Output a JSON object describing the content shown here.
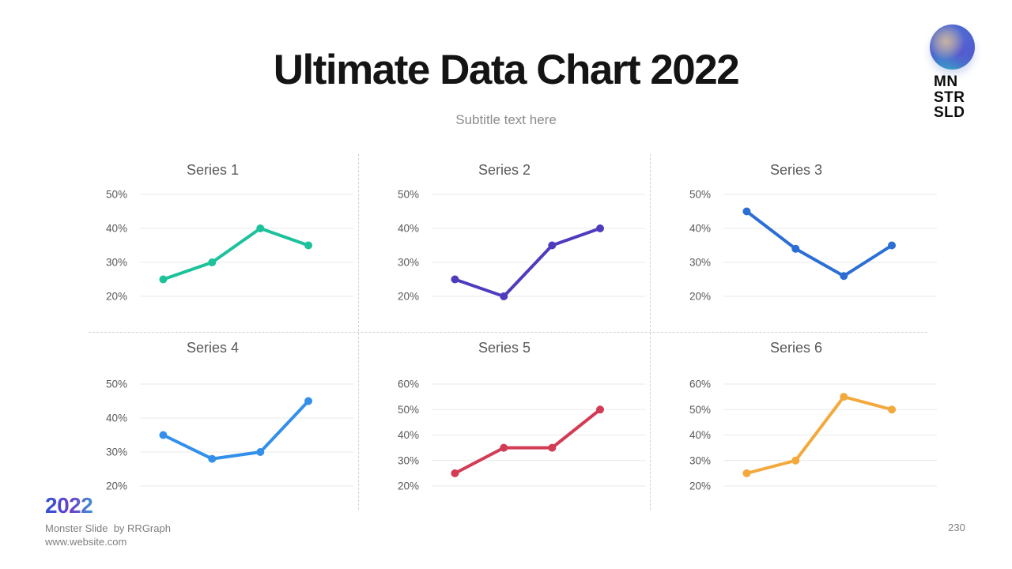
{
  "slide": {
    "title": "Ultimate Data Chart 2022",
    "subtitle": "Subtitle text here",
    "year_badge": "2022",
    "credit_line": "Monster Slide  by RRGraph",
    "website": "www.website.com",
    "page_number": "230",
    "logo": {
      "line1": "MN",
      "line2": "STR",
      "line3": "SLD"
    }
  },
  "colors": {
    "background": "#ffffff",
    "title_text": "#141414",
    "subtitle_text": "#8c8c8c",
    "chart_title_text": "#595959",
    "tick_text": "#595959",
    "gridline": "#e9e9e9",
    "divider_dash": "#d2d2d2",
    "footer_text": "#7f7f7f",
    "year_gradient_start": "#2E55D4",
    "year_gradient_mid": "#6C3FC8",
    "year_gradient_end": "#3E93CF"
  },
  "chart_data": [
    {
      "type": "line",
      "title": "Series 1",
      "color": "#1DC19C",
      "values": [
        25,
        30,
        40,
        35
      ],
      "yticks": [
        50,
        40,
        30,
        20
      ],
      "tick_suffix": "%",
      "grid": true,
      "legend": "none"
    },
    {
      "type": "line",
      "title": "Series 2",
      "color": "#4E3CBE",
      "values": [
        25,
        20,
        35,
        40
      ],
      "yticks": [
        50,
        40,
        30,
        20
      ],
      "tick_suffix": "%",
      "grid": true,
      "legend": "none"
    },
    {
      "type": "line",
      "title": "Series 3",
      "color": "#2B6FD5",
      "values": [
        45,
        34,
        26,
        35
      ],
      "yticks": [
        50,
        40,
        30,
        20
      ],
      "tick_suffix": "%",
      "grid": true,
      "legend": "none"
    },
    {
      "type": "line",
      "title": "Series 4",
      "color": "#3390EA",
      "values": [
        35,
        28,
        30,
        45
      ],
      "yticks": [
        50,
        40,
        30,
        20
      ],
      "tick_suffix": "%",
      "grid": true,
      "legend": "none"
    },
    {
      "type": "line",
      "title": "Series 5",
      "color": "#D23C55",
      "values": [
        25,
        35,
        35,
        50
      ],
      "yticks": [
        60,
        50,
        40,
        30,
        20
      ],
      "tick_suffix": "%",
      "grid": true,
      "legend": "none"
    },
    {
      "type": "line",
      "title": "Series 6",
      "color": "#F3A93C",
      "values": [
        25,
        30,
        55,
        50
      ],
      "yticks": [
        60,
        50,
        40,
        30,
        20
      ],
      "tick_suffix": "%",
      "grid": true,
      "legend": "none"
    }
  ]
}
